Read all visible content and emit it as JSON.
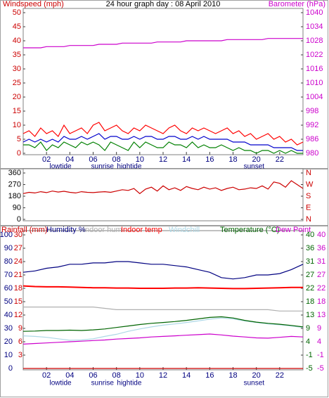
{
  "chart_data": [
    {
      "type": "line",
      "title": "24 hour graph day : 08 April 2010",
      "ylabel": "Windspeed (mph)",
      "ycolor": "#cc0000",
      "y2label": "Barometer (hPa)",
      "y2color": "#cc00cc",
      "x": [
        0,
        0.5,
        1,
        1.5,
        2,
        2.5,
        3,
        3.5,
        4,
        4.5,
        5,
        5.5,
        6,
        6.5,
        7,
        7.5,
        8,
        8.5,
        9,
        9.5,
        10,
        10.5,
        11,
        11.5,
        12,
        12.5,
        13,
        13.5,
        14,
        14.5,
        15,
        15.5,
        16,
        16.5,
        17,
        17.5,
        18,
        18.5,
        19,
        19.5,
        20,
        20.5,
        21,
        21.5,
        22,
        22.5,
        23,
        23.5,
        24
      ],
      "xlim": [
        0,
        24
      ],
      "xticks": [
        {
          "value": 2,
          "label": "02"
        },
        {
          "value": 4,
          "label": "04"
        },
        {
          "value": 6,
          "label": "06"
        },
        {
          "value": 8,
          "label": "08"
        },
        {
          "value": 10,
          "label": "10"
        },
        {
          "value": 12,
          "label": "12"
        },
        {
          "value": 14,
          "label": "14"
        },
        {
          "value": 16,
          "label": "16"
        },
        {
          "value": 18,
          "label": "18"
        },
        {
          "value": 20,
          "label": "20"
        },
        {
          "value": 22,
          "label": "22"
        }
      ],
      "ylim": [
        0,
        50
      ],
      "yticks": [
        0,
        5,
        10,
        15,
        20,
        25,
        30,
        35,
        40,
        45,
        50
      ],
      "y2lim": [
        980,
        1040
      ],
      "y2ticks": [
        980,
        986,
        992,
        998,
        1004,
        1010,
        1016,
        1022,
        1028,
        1034,
        1040
      ],
      "annotations": [
        {
          "text": "lowtide",
          "x": 3.2
        },
        {
          "text": "sunrise",
          "x": 6.8
        },
        {
          "text": "hightide",
          "x": 9.1
        },
        {
          "text": "sunset",
          "x": 19.8
        }
      ],
      "series": [
        {
          "color": "#ff0000",
          "axis": "y",
          "values": [
            7,
            8,
            6,
            9,
            7,
            8,
            6,
            10,
            7,
            8,
            9,
            7,
            10,
            11,
            8,
            9,
            10,
            8,
            7,
            9,
            8,
            10,
            9,
            8,
            7,
            9,
            10,
            8,
            7,
            9,
            8,
            9,
            8,
            7,
            8,
            9,
            7,
            8,
            6,
            7,
            5,
            6,
            7,
            5,
            6,
            4,
            5,
            3,
            4
          ]
        },
        {
          "color": "#008000",
          "axis": "y",
          "values": [
            3,
            3,
            2,
            4,
            1,
            3,
            2,
            4,
            3,
            2,
            4,
            3,
            4,
            3,
            1,
            4,
            3,
            2,
            1,
            4,
            2,
            4,
            3,
            2,
            2,
            4,
            3,
            3,
            2,
            4,
            2,
            3,
            2,
            2,
            3,
            2,
            1,
            2,
            1,
            1,
            0,
            1,
            1,
            0,
            1,
            0,
            1,
            0,
            0
          ]
        },
        {
          "color": "#0000cc",
          "axis": "y",
          "values": [
            4,
            5,
            4,
            5,
            4,
            5,
            4,
            6,
            5,
            5,
            6,
            5,
            6,
            7,
            5,
            6,
            6,
            5,
            5,
            6,
            5,
            6,
            6,
            5,
            5,
            6,
            6,
            5,
            5,
            6,
            5,
            6,
            5,
            5,
            5,
            5,
            4,
            4,
            4,
            3,
            3,
            3,
            3,
            2,
            2,
            2,
            2,
            1,
            1
          ]
        },
        {
          "color": "#cc00cc",
          "axis": "y2",
          "values": [
            1025,
            1025,
            1025,
            1025,
            1025.5,
            1025.5,
            1025.5,
            1025.5,
            1026,
            1026,
            1026,
            1026,
            1026,
            1026.5,
            1026.5,
            1026.5,
            1026.5,
            1027,
            1027,
            1027,
            1027,
            1027,
            1027,
            1027.5,
            1027.5,
            1027.5,
            1027.5,
            1027.5,
            1028,
            1028,
            1028,
            1028,
            1028,
            1028,
            1028,
            1028.5,
            1028.5,
            1028.5,
            1028.5,
            1028.5,
            1028.5,
            1028.5,
            1029,
            1029,
            1029,
            1029,
            1029,
            1029,
            1029
          ]
        }
      ]
    },
    {
      "type": "line",
      "ycolor": "#000000",
      "y2color": "#cc0000",
      "x": [
        0,
        0.5,
        1,
        1.5,
        2,
        2.5,
        3,
        3.5,
        4,
        4.5,
        5,
        5.5,
        6,
        6.5,
        7,
        7.5,
        8,
        8.5,
        9,
        9.5,
        10,
        10.5,
        11,
        11.5,
        12,
        12.5,
        13,
        13.5,
        14,
        14.5,
        15,
        15.5,
        16,
        16.5,
        17,
        17.5,
        18,
        18.5,
        19,
        19.5,
        20,
        20.5,
        21,
        21.5,
        22,
        22.5,
        23,
        23.5,
        24
      ],
      "xlim": [
        0,
        24
      ],
      "ylim": [
        0,
        360
      ],
      "yticks": [
        0,
        90,
        180,
        270,
        360
      ],
      "y2lim": [
        0,
        360
      ],
      "y2ticks": [
        {
          "value": 0,
          "label": "N"
        },
        {
          "value": 90,
          "label": "E"
        },
        {
          "value": 180,
          "label": "S"
        },
        {
          "value": 270,
          "label": "W"
        },
        {
          "value": 360,
          "label": "N"
        }
      ],
      "series": [
        {
          "color": "#cc0000",
          "axis": "y",
          "values": [
            200,
            210,
            205,
            215,
            208,
            220,
            212,
            218,
            210,
            205,
            215,
            210,
            208,
            212,
            215,
            210,
            220,
            230,
            225,
            240,
            200,
            235,
            250,
            220,
            260,
            230,
            245,
            225,
            255,
            240,
            230,
            250,
            235,
            245,
            225,
            240,
            250,
            230,
            235,
            245,
            240,
            260,
            235,
            290,
            280,
            250,
            300,
            270,
            240
          ]
        }
      ]
    },
    {
      "type": "line",
      "ycolor": "#000080",
      "rain_color": "#cc0000",
      "y2color": "#006400",
      "dew_color": "#cc00cc",
      "x": [
        0,
        1,
        2,
        3,
        4,
        5,
        6,
        7,
        8,
        9,
        10,
        11,
        12,
        13,
        14,
        15,
        16,
        17,
        18,
        19,
        20,
        21,
        22,
        23,
        24
      ],
      "xlim": [
        0,
        24
      ],
      "xticks": [
        {
          "value": 2,
          "label": "02"
        },
        {
          "value": 4,
          "label": "04"
        },
        {
          "value": 6,
          "label": "06"
        },
        {
          "value": 8,
          "label": "08"
        },
        {
          "value": 10,
          "label": "10"
        },
        {
          "value": 12,
          "label": "12"
        },
        {
          "value": 14,
          "label": "14"
        },
        {
          "value": 16,
          "label": "16"
        },
        {
          "value": 18,
          "label": "18"
        },
        {
          "value": 20,
          "label": "20"
        },
        {
          "value": 22,
          "label": "22"
        }
      ],
      "ylim": [
        0,
        100
      ],
      "yticks": [
        0,
        10,
        20,
        30,
        40,
        50,
        60,
        70,
        80,
        90,
        100
      ],
      "rain_lim": [
        0,
        30
      ],
      "rain_ticks": [
        3,
        6,
        9,
        12,
        15,
        18,
        21,
        24,
        27,
        30
      ],
      "y2lim": [
        -5,
        40
      ],
      "y2ticks": [
        -5,
        {
          "value": -0.5,
          "label": "-1"
        },
        4,
        {
          "value": 8.5,
          "label": "9"
        },
        13,
        {
          "value": 17.5,
          "label": "18"
        },
        22,
        {
          "value": 26.5,
          "label": "27"
        },
        31,
        {
          "value": 35.5,
          "label": "36"
        },
        40
      ],
      "dew_ticks": [
        -5,
        {
          "value": -0.5,
          "label": "-1"
        },
        4,
        {
          "value": 8.5,
          "label": "9"
        },
        13,
        {
          "value": 17.5,
          "label": "18"
        },
        22,
        {
          "value": 26.5,
          "label": "27"
        },
        31,
        {
          "value": 35.5,
          "label": "36"
        },
        40
      ],
      "annotations": [
        {
          "text": "lowtide",
          "x": 3.2
        },
        {
          "text": "sunrise",
          "x": 6.8
        },
        {
          "text": "hightide",
          "x": 9.1
        },
        {
          "text": "sunset",
          "x": 19.8
        }
      ],
      "series": [
        {
          "name": "Rainfall (mm)",
          "color": "#cc0000",
          "axis": "rain",
          "values": [
            0,
            0,
            0,
            0,
            0,
            0,
            0,
            0,
            0,
            0,
            0,
            0,
            0,
            0,
            0,
            0,
            0,
            0,
            0,
            0,
            0,
            0,
            0,
            0,
            0
          ]
        },
        {
          "name": "Humidity %",
          "color": "#000080",
          "axis": "y",
          "values": [
            72,
            73,
            75,
            76,
            78,
            78,
            79,
            79,
            80,
            80,
            79,
            78,
            78,
            77,
            76,
            74,
            72,
            68,
            67,
            68,
            70,
            70,
            71,
            74,
            78
          ]
        },
        {
          "name": "Indoor hum",
          "color": "#b0b0b0",
          "axis": "y",
          "values": [
            46,
            46,
            46,
            46,
            46,
            46,
            46,
            45,
            44,
            44,
            44,
            44,
            44,
            44,
            44,
            44,
            44,
            44,
            44,
            44,
            44,
            44,
            43,
            43,
            43
          ]
        },
        {
          "name": "Indoor temp",
          "color": "#ff0000",
          "axis": "y2",
          "values": [
            22.8,
            22.6,
            22.5,
            22.5,
            22.4,
            22.3,
            22.2,
            22.2,
            22.1,
            22.1,
            22.0,
            22.0,
            22.0,
            22.1,
            22.1,
            22.2,
            22.1,
            22.0,
            21.9,
            21.9,
            22.0,
            22.1,
            22.2,
            22.3,
            22.3
          ]
        },
        {
          "name": "Windchill",
          "color": "#add8e6",
          "axis": "y2",
          "values": [
            6.0,
            5.8,
            5.5,
            5.0,
            4.5,
            4.6,
            5.0,
            5.8,
            6.5,
            7.5,
            8.3,
            9.0,
            9.6,
            10.0,
            10.5,
            11.0,
            11.6,
            12.0,
            11.7,
            11.0,
            10.5,
            10.0,
            9.7,
            9.3,
            8.8
          ]
        },
        {
          "name": "Temperature (°C)",
          "color": "#006400",
          "axis": "y2",
          "values": [
            7.5,
            7.6,
            7.8,
            7.8,
            7.9,
            7.8,
            8.0,
            8.3,
            8.8,
            9.3,
            9.8,
            10.2,
            10.5,
            10.8,
            11.2,
            11.7,
            12.2,
            12.4,
            12.0,
            11.2,
            10.6,
            10.2,
            9.9,
            9.5,
            9.0
          ]
        },
        {
          "name": "Dew Point",
          "color": "#cc00cc",
          "axis": "y2",
          "values": [
            3.2,
            3.4,
            3.6,
            3.8,
            4.0,
            4.2,
            4.4,
            4.6,
            4.9,
            5.1,
            5.3,
            5.6,
            5.8,
            6.0,
            6.2,
            6.4,
            6.6,
            6.3,
            5.9,
            5.6,
            5.3,
            5.2,
            5.5,
            5.8,
            5.6
          ]
        }
      ]
    }
  ]
}
